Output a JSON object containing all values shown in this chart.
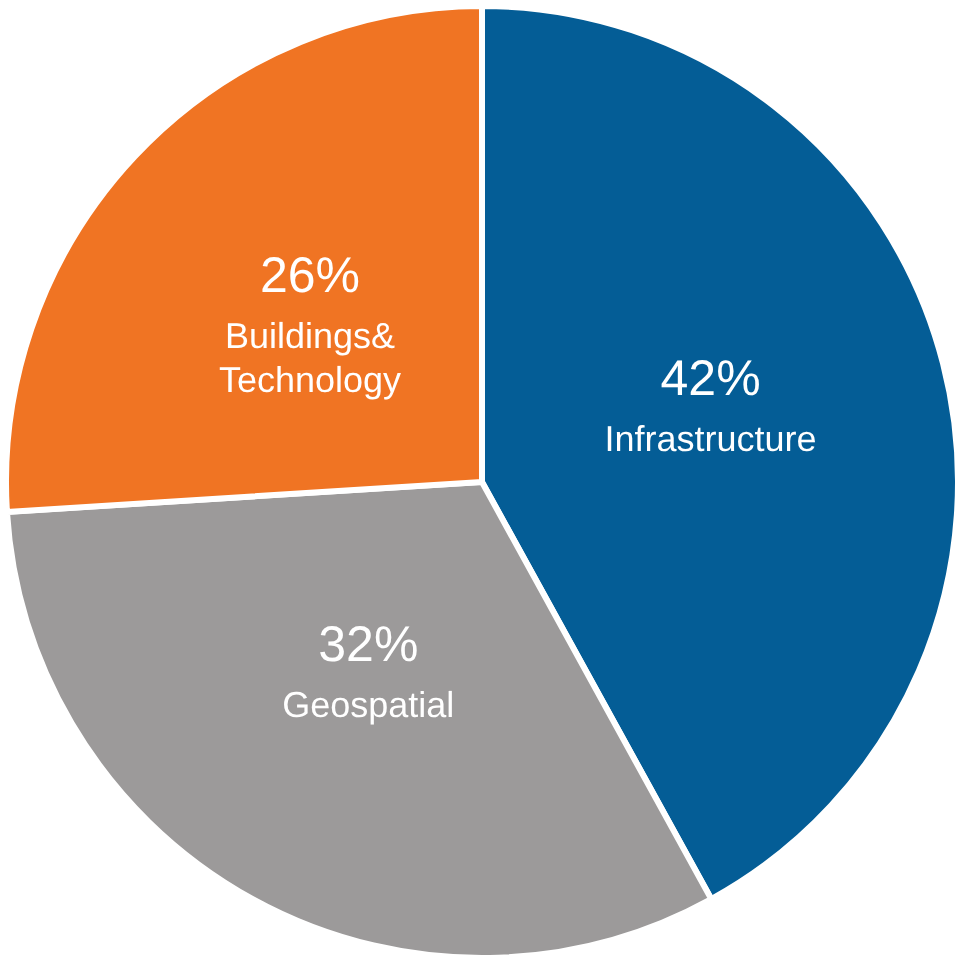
{
  "chart_data": {
    "type": "pie",
    "categories": [
      "Infrastructure",
      "Geospatial",
      "Buildings& Technology"
    ],
    "values": [
      42,
      32,
      26
    ],
    "colors": [
      "#045d96",
      "#9c9a9a",
      "#f07423"
    ],
    "value_labels": [
      "42%",
      "32%",
      "26%"
    ],
    "legend": false
  }
}
